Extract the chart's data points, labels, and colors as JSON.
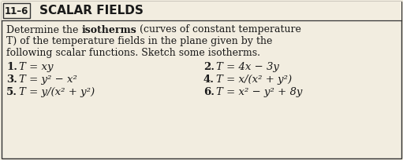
{
  "header_box_text": "11–6",
  "header_title": "SCALAR FIELDS",
  "body_parts_line1": [
    {
      "text": "Determine the ",
      "bold": false,
      "italic": false
    },
    {
      "text": "isotherms",
      "bold": true,
      "italic": false
    },
    {
      "text": " (curves of constant temperature",
      "bold": false,
      "italic": false
    }
  ],
  "body_line2": "T) of the temperature fields in the plane given by the",
  "body_line3": "following scalar functions. Sketch some isotherms.",
  "items_left": [
    {
      "num": "1.",
      "text": "T = xy"
    },
    {
      "num": "3.",
      "text": "T = y² − x²"
    },
    {
      "num": "5.",
      "text": "T = y/(x² + y²)"
    }
  ],
  "items_right": [
    {
      "num": "2.",
      "text": "T = 4x − 3y"
    },
    {
      "num": "4.",
      "text": "T = x/(x² + y²)"
    },
    {
      "num": "6.",
      "text": "T = x² − y² + 8y"
    }
  ],
  "bg_color": "#f2ede0",
  "text_color": "#1a1a1a",
  "header_bg": "#ffffff",
  "border_color": "#333333",
  "line1_segments": [
    "Determine the ",
    "isotherms",
    " (curves of constant temperature"
  ]
}
